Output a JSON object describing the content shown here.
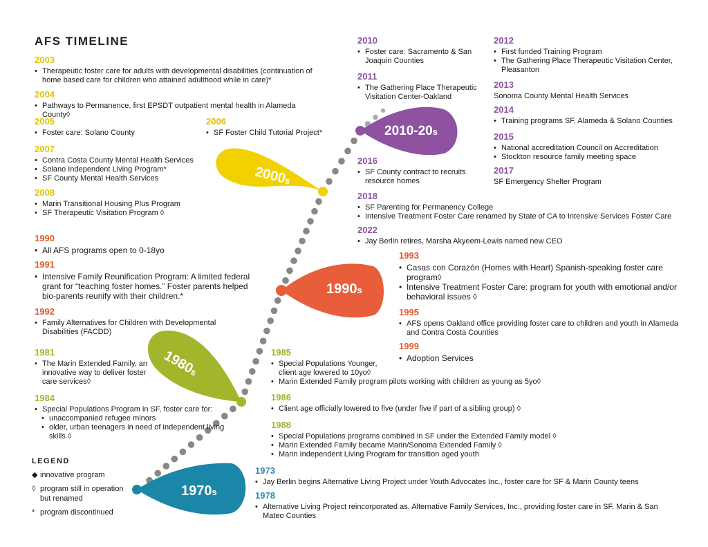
{
  "title": "AFS TIMELINE",
  "colors": {
    "d2000": "#f2d100",
    "d1990": "#e85d3a",
    "d1980": "#a3b52b",
    "d1970": "#1a86a8",
    "d2010": "#8e52a0",
    "dots": "#888888"
  },
  "decades": [
    {
      "label": "2000",
      "suffix": "s"
    },
    {
      "label": "1990",
      "suffix": "s"
    },
    {
      "label": "1980",
      "suffix": "s"
    },
    {
      "label": "1970",
      "suffix": "s"
    },
    {
      "label": "2010-20",
      "suffix": "s"
    }
  ],
  "entries": {
    "y2003": {
      "year": "2003",
      "items": [
        "Therapeutic foster care for adults with developmental disabilities (continuation of home based care for children who attained adulthood while in care)*"
      ]
    },
    "y2004": {
      "year": "2004",
      "items": [
        "Pathways to Permanence, first EPSDT outpatient mental health in Alameda County◊"
      ]
    },
    "y2005": {
      "year": "2005",
      "items": [
        "Foster care: Solano County"
      ]
    },
    "y2006": {
      "year": "2006",
      "items": [
        "SF Foster Child Tutorial Project*"
      ]
    },
    "y2007": {
      "year": "2007",
      "items": [
        "Contra Costa County Mental Health Services",
        "Solano Independent Living Program*",
        "SF County Mental Health Services"
      ]
    },
    "y2008": {
      "year": "2008",
      "items": [
        "Marin Transitional Housing Plus Program",
        "SF Therapeutic Visitation Program ◊"
      ]
    },
    "y1990": {
      "year": "1990",
      "items": [
        "All AFS programs open to 0-18yo"
      ]
    },
    "y1991": {
      "year": "1991",
      "items": [
        "Intensive Family Reunification Program: A limited federal grant for “teaching  foster homes.” Foster parents helped bio-parents reunify with their children.*"
      ]
    },
    "y1992": {
      "year": "1992",
      "items": [
        "Family Alternatives for Children with Developmental Disabilities (FACDD)"
      ]
    },
    "y1981": {
      "year": "1981",
      "items": [
        "The Marin Extended Family, an innovative way to deliver foster care services◊"
      ]
    },
    "y1984": {
      "year": "1984",
      "items": [
        "Special Populations Program in SF, foster care for:"
      ],
      "subitems": [
        "unaccompanied refugee minors",
        "older, urban teenagers in need of independent living skills ◊"
      ]
    },
    "y1985": {
      "year": "1985",
      "items": [
        "Special Populations Younger, client age lowered to 10yo◊",
        "Marin Extended Family program pilots working with children as young as 5yo◊"
      ]
    },
    "y1986": {
      "year": "1986",
      "items": [
        "Client age officially lowered to five (under five if part of a sibling group) ◊"
      ]
    },
    "y1988": {
      "year": "1988",
      "items": [
        "Special Populations programs combined in SF under the Extended Family model ◊",
        "Marin Extended Family became Marin/Sonoma Extended Family ◊",
        "Marin Independent Living Program for transition aged youth"
      ]
    },
    "y1973": {
      "year": "1973",
      "items": [
        "Jay Berlin begins Alternative Living Project under Youth Advocates Inc., foster care for SF & Marin County teens"
      ]
    },
    "y1978": {
      "year": "1978",
      "items": [
        "Alternative Living Project reincorporated as, Alternative Family Services, Inc., providing foster care in SF, Marin & San Mateo Counties"
      ]
    },
    "y1993": {
      "year": "1993",
      "items": [
        "Casas con Corazón (Homes with Heart) Spanish-speaking foster care program◊",
        "Intensive Treatment Foster Care: program for youth with emotional and/or behavioral issues ◊"
      ]
    },
    "y1995": {
      "year": "1995",
      "items": [
        "AFS opens Oakland office providing foster care to children and youth in Alameda and Contra Costa Counties"
      ]
    },
    "y1999": {
      "year": "1999",
      "items": [
        "Adoption Services"
      ]
    },
    "y2010": {
      "year": "2010",
      "items": [
        "Foster care: Sacramento & San Joaquin Counties"
      ]
    },
    "y2011": {
      "year": "2011",
      "items": [
        "The Gathering Place Therapeutic Visitation Center-Oakland"
      ]
    },
    "y2016": {
      "year": "2016",
      "items": [
        "SF County contract to recruits resource homes"
      ]
    },
    "y2018": {
      "year": "2018",
      "items": [
        "SF Parenting for Permanency College",
        "Intensive Treatment Foster Care renamed by State of CA to Intensive Services Foster Care"
      ]
    },
    "y2022": {
      "year": "2022",
      "items": [
        "Jay Berlin retires, Marsha Akyeem-Lewis named new CEO"
      ]
    },
    "y2012": {
      "year": "2012",
      "items": [
        "First funded Training Program",
        "The Gathering Place Therapeutic Visitation Center, Pleasanton"
      ]
    },
    "y2013": {
      "year": "2013",
      "text": "Sonoma County Mental Health Services"
    },
    "y2014": {
      "year": "2014",
      "items": [
        "Training programs SF, Alameda & Solano Counties"
      ]
    },
    "y2015": {
      "year": "2015",
      "items": [
        "National accreditation Council on Accreditation",
        "Stockton resource family meeting space"
      ]
    },
    "y2017": {
      "year": "2017",
      "text": "SF Emergency Shelter Program"
    }
  },
  "legend": {
    "heading": "LEGEND",
    "rows": [
      {
        "symbol": "◆",
        "text": "innovative program"
      },
      {
        "symbol": "◊",
        "text": "program still in operation but renamed"
      },
      {
        "symbol": "*",
        "text": "program discontinued"
      }
    ]
  }
}
